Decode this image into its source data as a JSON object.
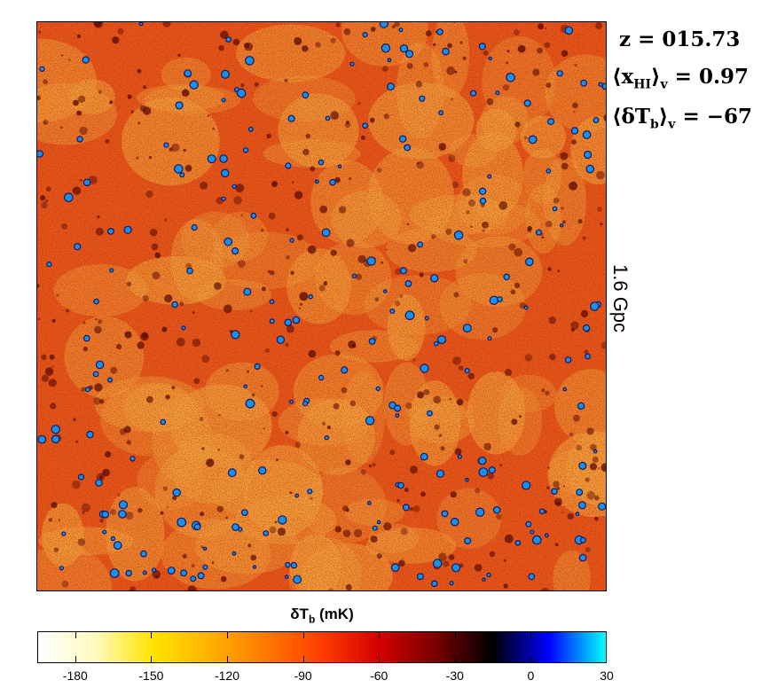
{
  "annotations": {
    "redshift": {
      "label": "z",
      "eq": " = ",
      "value": "015.73"
    },
    "neutral_fraction": {
      "open": "⟨",
      "sym": "x",
      "sub": "HI",
      "close": "⟩",
      "sub2": "v",
      "eq": " = ",
      "value": "0.97"
    },
    "mean_dtb": {
      "open": "⟨",
      "sym": "δT",
      "sub": "b",
      "close": "⟩",
      "sub2": "v",
      "eq": " = ",
      "value": "−67"
    }
  },
  "scale_bar": {
    "label": "1.6 Gpc"
  },
  "colorbar": {
    "title_main": "δT",
    "title_sub": "b",
    "title_unit": " (mK)",
    "range": [
      -195,
      30
    ],
    "ticks": [
      {
        "value": -180,
        "label": "-180"
      },
      {
        "value": -150,
        "label": "-150"
      },
      {
        "value": -120,
        "label": "-120"
      },
      {
        "value": -90,
        "label": "-90"
      },
      {
        "value": -60,
        "label": "-60"
      },
      {
        "value": -30,
        "label": "-30"
      },
      {
        "value": 0,
        "label": "0"
      },
      {
        "value": 30,
        "label": "30"
      }
    ],
    "colors": [
      "#ffffff",
      "#fffbc0",
      "#ffe500",
      "#ffb300",
      "#ff7a00",
      "#ff3c00",
      "#d40000",
      "#7a0000",
      "#000000",
      "#0000ff",
      "#00ffff"
    ]
  },
  "map": {
    "background": "#e8581c",
    "warm_color": "#f5a640",
    "dark_color": "#5a0a02",
    "ionized_color": "#1e8fe0",
    "ionized_edge": "#0a1a70"
  }
}
